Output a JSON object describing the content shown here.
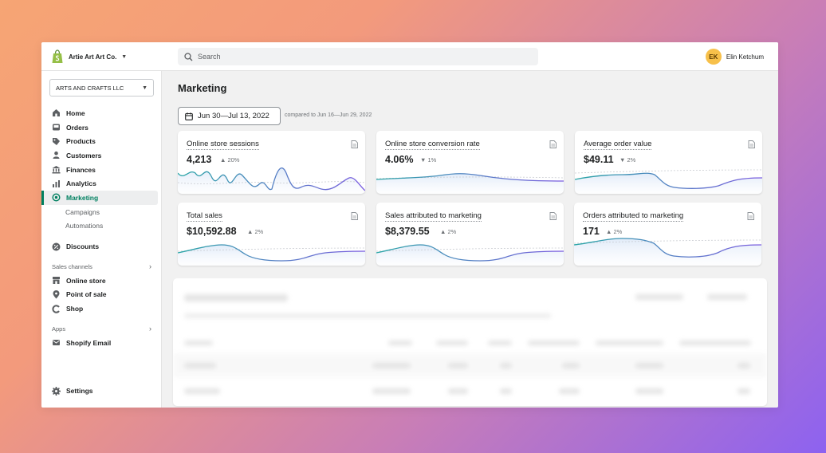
{
  "topbar": {
    "store_name": "Artie Art Art Co.",
    "search_placeholder": "Search",
    "user_initials": "EK",
    "user_name": "Elin Ketchum"
  },
  "sidebar": {
    "org": "ARTS AND CRAFTS LLC",
    "items": [
      {
        "label": "Home",
        "icon": "home-icon"
      },
      {
        "label": "Orders",
        "icon": "orders-icon"
      },
      {
        "label": "Products",
        "icon": "tag-icon"
      },
      {
        "label": "Customers",
        "icon": "person-icon"
      },
      {
        "label": "Finances",
        "icon": "bank-icon"
      },
      {
        "label": "Analytics",
        "icon": "bar-chart-icon"
      },
      {
        "label": "Marketing",
        "icon": "target-icon",
        "active": true
      },
      {
        "label": "Campaigns",
        "sub": true
      },
      {
        "label": "Automations",
        "sub": true
      },
      {
        "label": "Discounts",
        "icon": "discount-icon"
      }
    ],
    "sales_channels_label": "Sales channels",
    "channels": [
      {
        "label": "Online store",
        "icon": "store-icon"
      },
      {
        "label": "Point of sale",
        "icon": "pin-icon"
      },
      {
        "label": "Shop",
        "icon": "shop-icon"
      }
    ],
    "apps_label": "Apps",
    "apps": [
      {
        "label": "Shopify Email",
        "icon": "email-icon"
      }
    ],
    "settings_label": "Settings"
  },
  "main": {
    "title": "Marketing",
    "date_range": "Jun 30—Jul 13, 2022",
    "compare_text": "compared to Jun 16—Jun 29, 2022",
    "cards": [
      {
        "title": "Online store sessions",
        "value": "4,213",
        "delta": "20%"
      },
      {
        "title": "Online store conversion rate",
        "value": "4.06%",
        "delta": "1%"
      },
      {
        "title": "Average order value",
        "value": "$49.11",
        "delta": "2%"
      },
      {
        "title": "Total sales",
        "value": "$10,592.88",
        "delta": "2%"
      },
      {
        "title": "Sales attributed to marketing",
        "value": "$8,379.55",
        "delta": "2%"
      },
      {
        "title": "Orders attributed to marketing",
        "value": "171",
        "delta": "2%"
      }
    ]
  },
  "colors": {
    "accent": "#008060",
    "spark_start": "#2aa6a6",
    "spark_end": "#7b5ce0",
    "avatar": "#f7c04a"
  }
}
